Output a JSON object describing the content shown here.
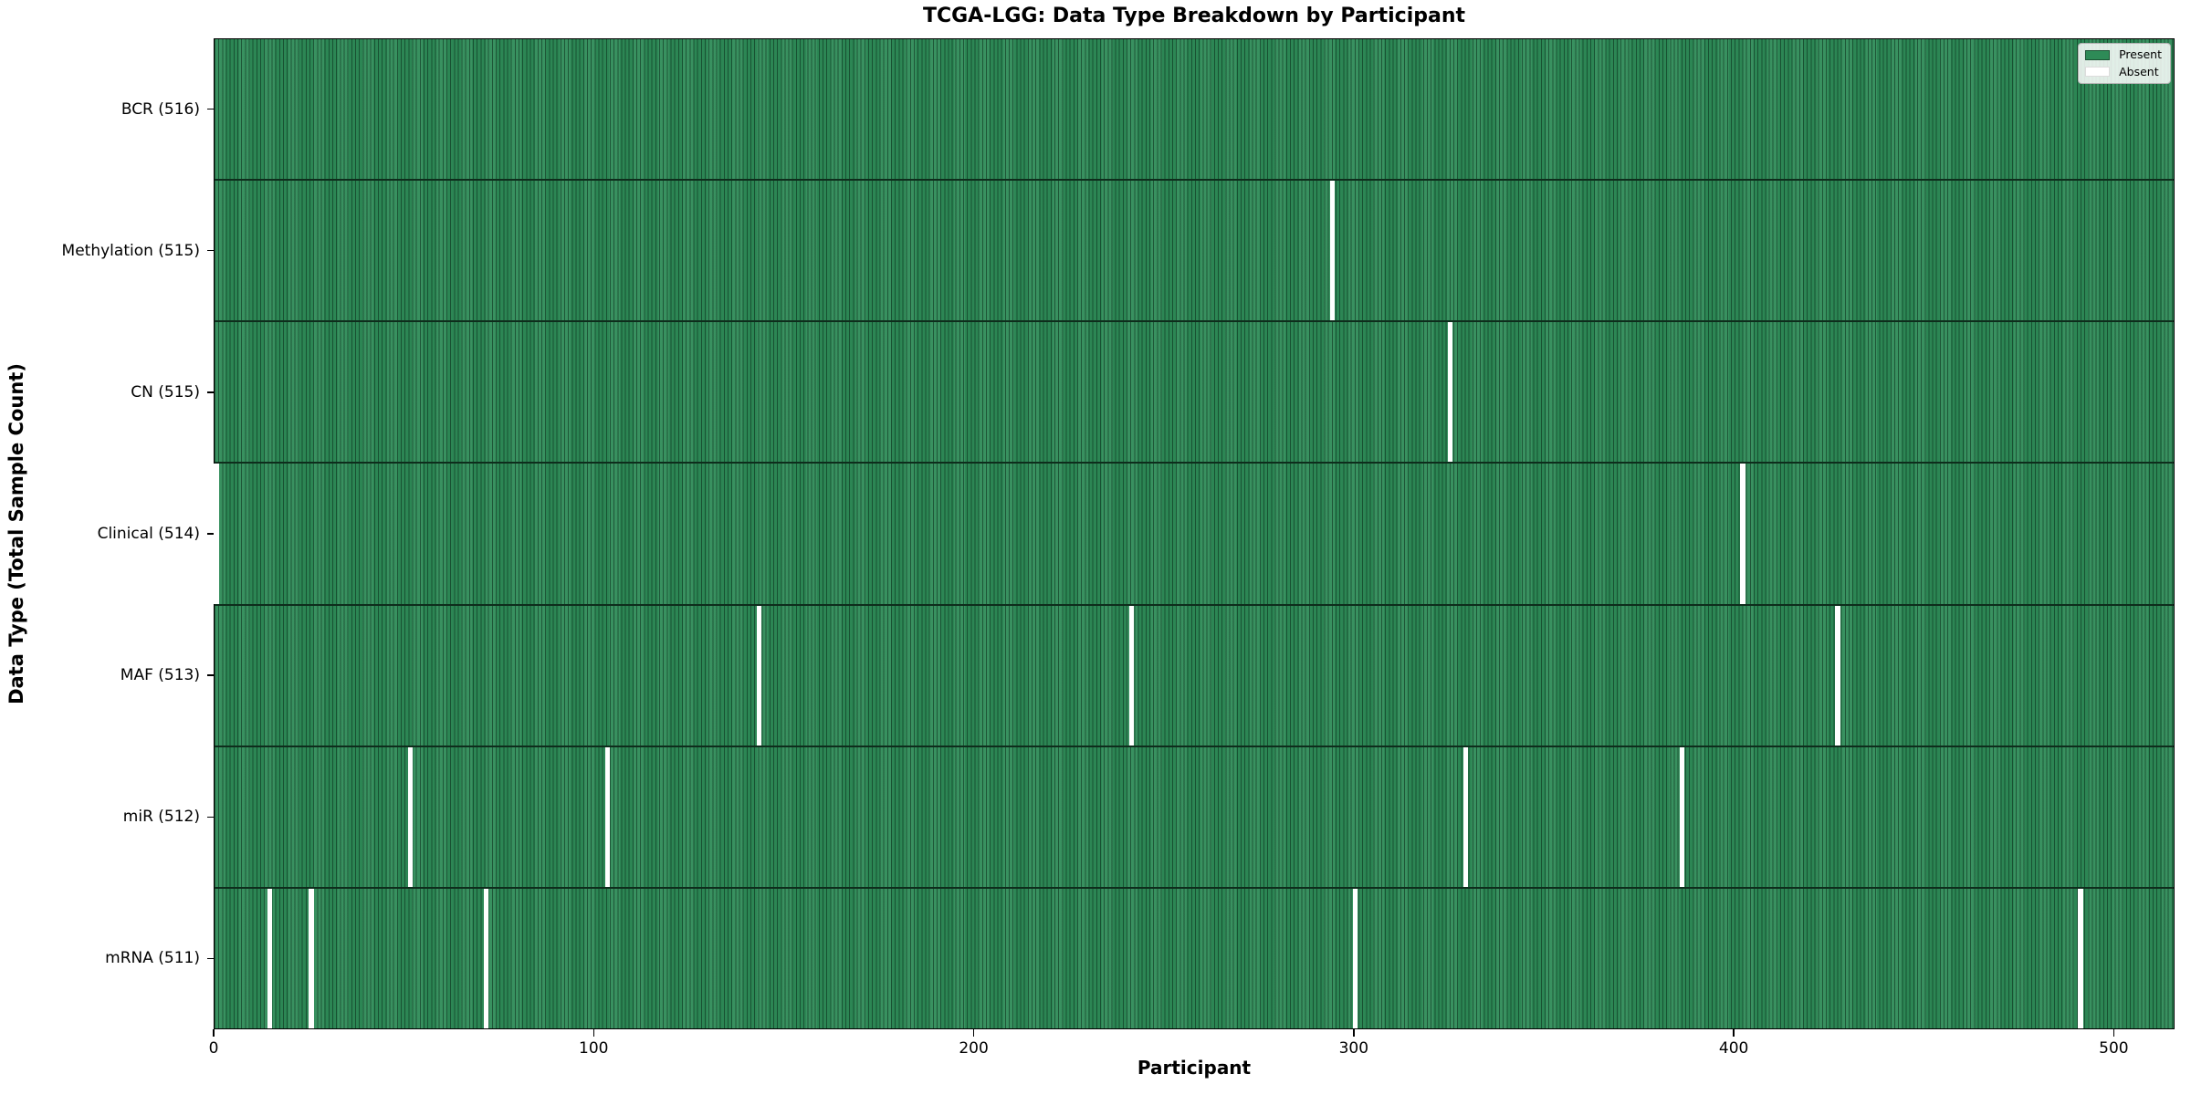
{
  "chart_data": {
    "type": "heatmap",
    "title": "TCGA-LGG: Data Type Breakdown by Participant",
    "xlabel": "Participant",
    "ylabel": "Data Type (Total Sample Count)",
    "n_participants": 516,
    "x_ticks": [
      0,
      100,
      200,
      300,
      400,
      500
    ],
    "x_range": [
      0,
      516
    ],
    "grid": false,
    "colors": {
      "present": "#2e8b57",
      "absent": "#ffffff",
      "bar_edge": "#0e2d1c"
    },
    "legend": {
      "position": "upper right",
      "entries": [
        {
          "label": "Present",
          "color": "#2e8b57"
        },
        {
          "label": "Absent",
          "color": "#ffffff"
        }
      ]
    },
    "rows": [
      {
        "label": "BCR (516)",
        "data_type": "BCR",
        "present_count": 516,
        "absent_participants": []
      },
      {
        "label": "Methylation (515)",
        "data_type": "Methylation",
        "present_count": 515,
        "absent_participants": [
          294
        ]
      },
      {
        "label": "CN (515)",
        "data_type": "CN",
        "present_count": 515,
        "absent_participants": [
          325
        ]
      },
      {
        "label": "Clinical (514)",
        "data_type": "Clinical",
        "present_count": 514,
        "absent_participants": [
          0,
          402
        ]
      },
      {
        "label": "MAF (513)",
        "data_type": "MAF",
        "present_count": 513,
        "absent_participants": [
          143,
          241,
          427
        ]
      },
      {
        "label": "miR (512)",
        "data_type": "miR",
        "present_count": 512,
        "absent_participants": [
          51,
          103,
          329,
          386
        ]
      },
      {
        "label": "mRNA (511)",
        "data_type": "mRNA",
        "present_count": 511,
        "absent_participants": [
          14,
          25,
          71,
          300,
          491
        ]
      }
    ]
  }
}
